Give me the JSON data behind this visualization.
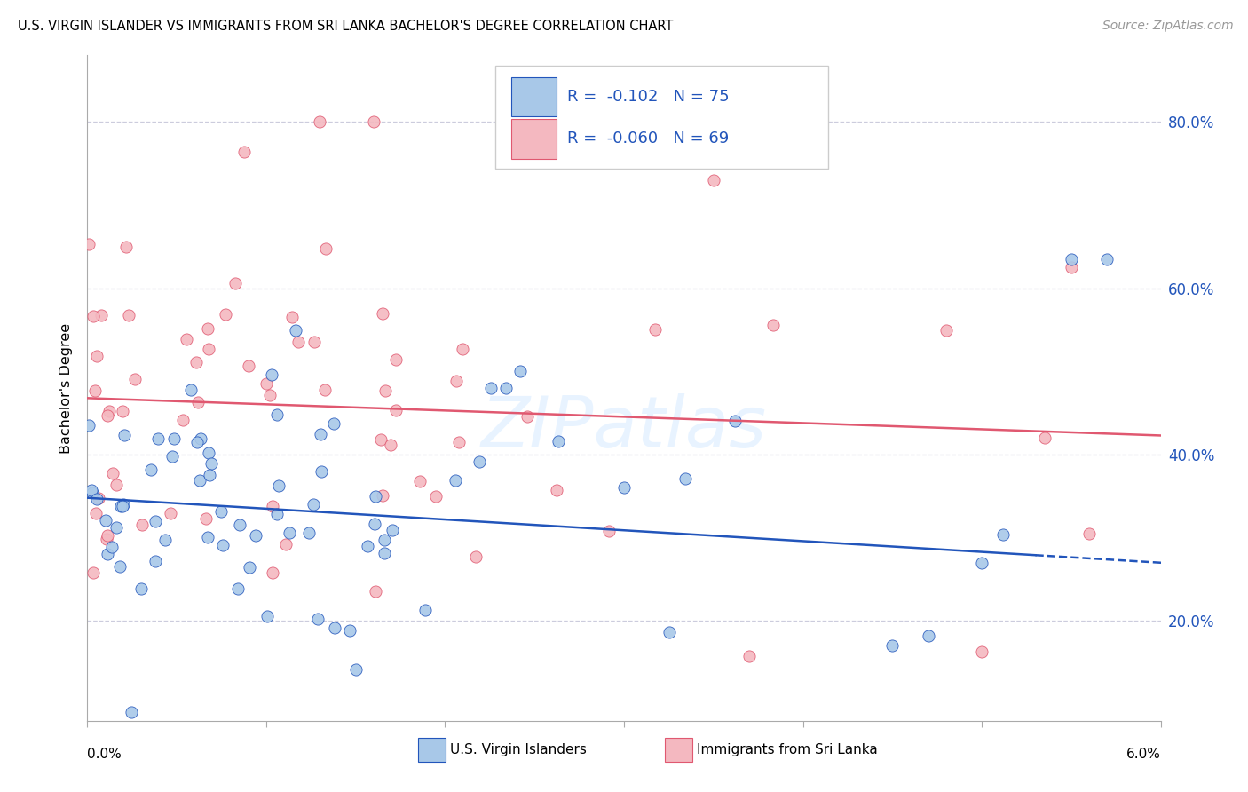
{
  "title": "U.S. VIRGIN ISLANDER VS IMMIGRANTS FROM SRI LANKA BACHELOR'S DEGREE CORRELATION CHART",
  "source": "Source: ZipAtlas.com",
  "ylabel": "Bachelor's Degree",
  "legend_label_blue": "U.S. Virgin Islanders",
  "legend_label_pink": "Immigrants from Sri Lanka",
  "blue_color": "#a8c8e8",
  "blue_line_color": "#2255bb",
  "pink_color": "#f4b8c0",
  "pink_line_color": "#e05870",
  "blue_R": "-0.102",
  "blue_N": "75",
  "pink_R": "-0.060",
  "pink_N": "69",
  "xlim": [
    0.0,
    0.06
  ],
  "ylim": [
    0.08,
    0.88
  ],
  "yticks": [
    0.2,
    0.4,
    0.6,
    0.8
  ],
  "ytick_labels": [
    "20.0%",
    "40.0%",
    "60.0%",
    "80.0%"
  ],
  "xtick_label_left": "0.0%",
  "xtick_label_right": "6.0%"
}
